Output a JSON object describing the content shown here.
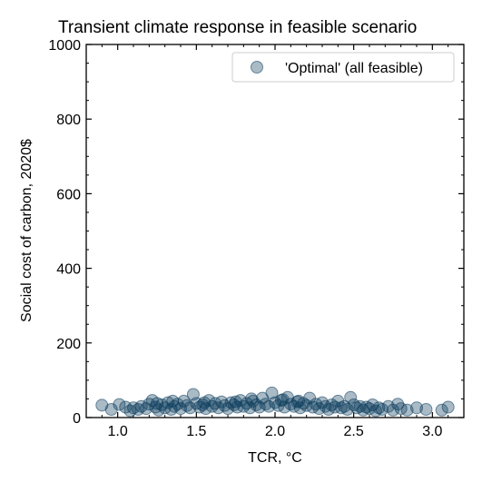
{
  "chart_data": {
    "type": "scatter",
    "title": "Transient climate response in feasible scenario",
    "xlabel": "TCR, °C",
    "ylabel": "Social cost of carbon, 2020$",
    "xlim": [
      0.8,
      3.2
    ],
    "ylim": [
      0,
      1000
    ],
    "xticks": [
      1.0,
      1.5,
      2.0,
      2.5,
      3.0
    ],
    "xtick_labels": [
      "1.0",
      "1.5",
      "2.0",
      "2.5",
      "3.0"
    ],
    "yticks": [
      0,
      200,
      400,
      600,
      800,
      1000
    ],
    "ytick_labels": [
      "0",
      "200",
      "400",
      "600",
      "800",
      "1000"
    ],
    "grid": false,
    "legend_position": "top-right",
    "series": [
      {
        "name": "'Optimal' (all feasible)",
        "color": "#0b3d5c",
        "points": [
          [
            0.9,
            33
          ],
          [
            0.96,
            22
          ],
          [
            1.01,
            35
          ],
          [
            1.05,
            28
          ],
          [
            1.08,
            18
          ],
          [
            1.1,
            26
          ],
          [
            1.13,
            22
          ],
          [
            1.15,
            30
          ],
          [
            1.18,
            24
          ],
          [
            1.2,
            36
          ],
          [
            1.22,
            46
          ],
          [
            1.24,
            28
          ],
          [
            1.26,
            20
          ],
          [
            1.28,
            34
          ],
          [
            1.3,
            26
          ],
          [
            1.32,
            40
          ],
          [
            1.34,
            22
          ],
          [
            1.36,
            30
          ],
          [
            1.38,
            36
          ],
          [
            1.4,
            24
          ],
          [
            1.42,
            44
          ],
          [
            1.44,
            32
          ],
          [
            1.46,
            26
          ],
          [
            1.48,
            62
          ],
          [
            1.5,
            38
          ],
          [
            1.52,
            28
          ],
          [
            1.54,
            34
          ],
          [
            1.56,
            24
          ],
          [
            1.58,
            46
          ],
          [
            1.6,
            30
          ],
          [
            1.62,
            38
          ],
          [
            1.64,
            26
          ],
          [
            1.66,
            42
          ],
          [
            1.68,
            32
          ],
          [
            1.7,
            24
          ],
          [
            1.72,
            40
          ],
          [
            1.74,
            34
          ],
          [
            1.76,
            28
          ],
          [
            1.78,
            46
          ],
          [
            1.8,
            30
          ],
          [
            1.82,
            38
          ],
          [
            1.84,
            26
          ],
          [
            1.86,
            44
          ],
          [
            1.88,
            34
          ],
          [
            1.9,
            28
          ],
          [
            1.92,
            52
          ],
          [
            1.94,
            36
          ],
          [
            1.96,
            30
          ],
          [
            1.98,
            66
          ],
          [
            2.0,
            40
          ],
          [
            2.02,
            32
          ],
          [
            2.04,
            46
          ],
          [
            2.06,
            28
          ],
          [
            2.08,
            54
          ],
          [
            2.1,
            36
          ],
          [
            2.12,
            30
          ],
          [
            2.14,
            42
          ],
          [
            2.16,
            26
          ],
          [
            2.18,
            38
          ],
          [
            2.2,
            32
          ],
          [
            2.22,
            52
          ],
          [
            2.24,
            28
          ],
          [
            2.26,
            36
          ],
          [
            2.28,
            24
          ],
          [
            2.3,
            40
          ],
          [
            2.32,
            30
          ],
          [
            2.34,
            22
          ],
          [
            2.36,
            34
          ],
          [
            2.38,
            28
          ],
          [
            2.4,
            44
          ],
          [
            2.42,
            26
          ],
          [
            2.44,
            30
          ],
          [
            2.46,
            22
          ],
          [
            2.48,
            54
          ],
          [
            2.5,
            34
          ],
          [
            2.52,
            26
          ],
          [
            2.54,
            30
          ],
          [
            2.56,
            20
          ],
          [
            2.58,
            28
          ],
          [
            2.6,
            24
          ],
          [
            2.62,
            34
          ],
          [
            2.64,
            18
          ],
          [
            2.66,
            26
          ],
          [
            2.68,
            22
          ],
          [
            2.72,
            30
          ],
          [
            2.75,
            20
          ],
          [
            2.78,
            36
          ],
          [
            2.8,
            24
          ],
          [
            2.84,
            20
          ],
          [
            2.9,
            26
          ],
          [
            2.96,
            22
          ],
          [
            3.06,
            20
          ],
          [
            3.1,
            28
          ],
          [
            1.35,
            44
          ],
          [
            1.85,
            50
          ],
          [
            2.05,
            48
          ],
          [
            1.55,
            40
          ],
          [
            1.75,
            42
          ],
          [
            1.25,
            38
          ],
          [
            2.15,
            44
          ]
        ]
      }
    ]
  }
}
